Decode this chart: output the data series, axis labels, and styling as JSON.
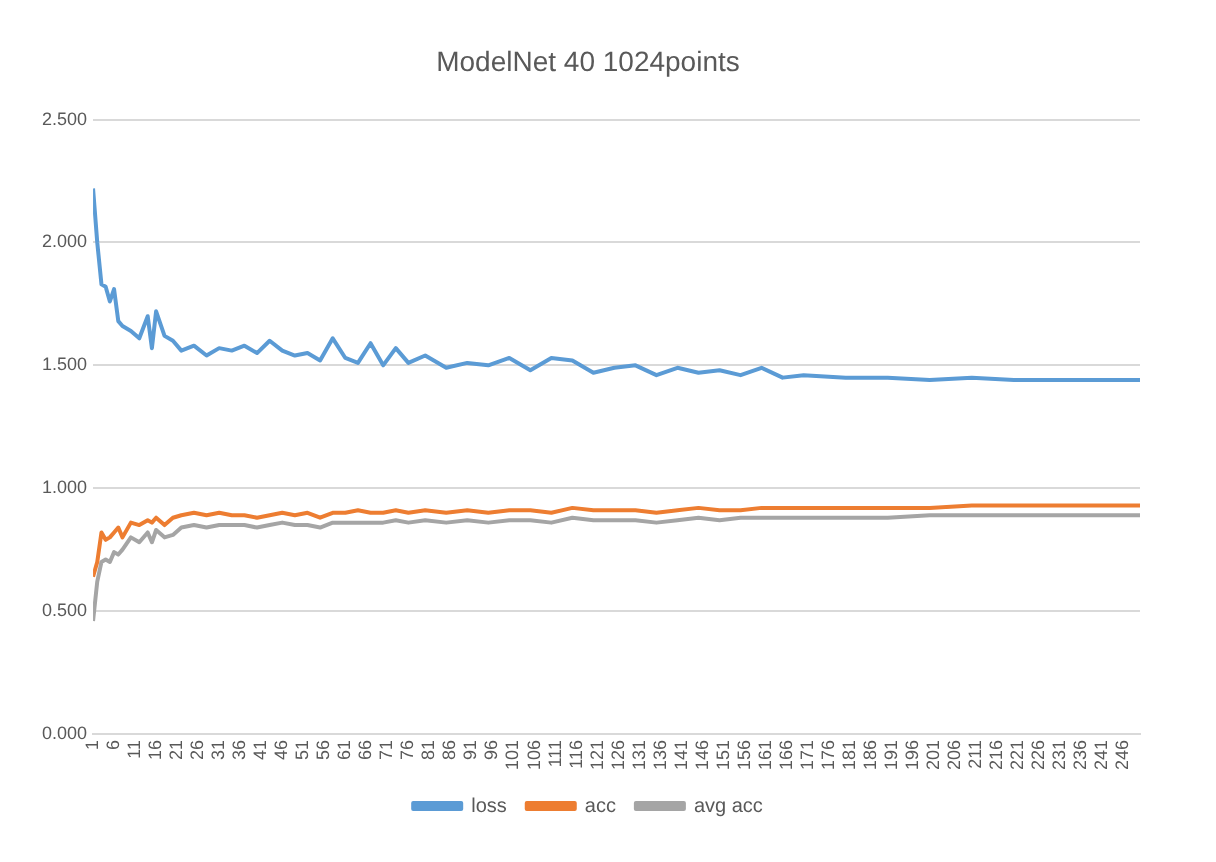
{
  "chart_data": {
    "type": "line",
    "title": "ModelNet 40 1024points",
    "x": [
      1,
      2,
      3,
      4,
      5,
      6,
      7,
      8,
      10,
      12,
      14,
      15,
      16,
      18,
      20,
      22,
      25,
      28,
      31,
      34,
      37,
      40,
      43,
      46,
      49,
      52,
      55,
      58,
      61,
      64,
      67,
      70,
      73,
      76,
      80,
      85,
      90,
      95,
      100,
      105,
      110,
      115,
      120,
      125,
      130,
      135,
      140,
      145,
      150,
      155,
      160,
      165,
      170,
      180,
      190,
      200,
      210,
      220,
      230,
      240,
      250
    ],
    "series": [
      {
        "name": "loss",
        "color": "#5b9bd5",
        "values": [
          2.22,
          2.0,
          1.83,
          1.82,
          1.76,
          1.81,
          1.68,
          1.66,
          1.64,
          1.61,
          1.7,
          1.57,
          1.72,
          1.62,
          1.6,
          1.56,
          1.58,
          1.54,
          1.57,
          1.56,
          1.58,
          1.55,
          1.6,
          1.56,
          1.54,
          1.55,
          1.52,
          1.61,
          1.53,
          1.51,
          1.59,
          1.5,
          1.57,
          1.51,
          1.54,
          1.49,
          1.51,
          1.5,
          1.53,
          1.48,
          1.53,
          1.52,
          1.47,
          1.49,
          1.5,
          1.46,
          1.49,
          1.47,
          1.48,
          1.46,
          1.49,
          1.45,
          1.46,
          1.45,
          1.45,
          1.44,
          1.45,
          1.44,
          1.44,
          1.44,
          1.44
        ]
      },
      {
        "name": "acc",
        "color": "#ed7d31",
        "values": [
          0.64,
          0.7,
          0.82,
          0.79,
          0.8,
          0.82,
          0.84,
          0.8,
          0.86,
          0.85,
          0.87,
          0.86,
          0.88,
          0.85,
          0.88,
          0.89,
          0.9,
          0.89,
          0.9,
          0.89,
          0.89,
          0.88,
          0.89,
          0.9,
          0.89,
          0.9,
          0.88,
          0.9,
          0.9,
          0.91,
          0.9,
          0.9,
          0.91,
          0.9,
          0.91,
          0.9,
          0.91,
          0.9,
          0.91,
          0.91,
          0.9,
          0.92,
          0.91,
          0.91,
          0.91,
          0.9,
          0.91,
          0.92,
          0.91,
          0.91,
          0.92,
          0.92,
          0.92,
          0.92,
          0.92,
          0.92,
          0.93,
          0.93,
          0.93,
          0.93,
          0.93
        ]
      },
      {
        "name": "avg acc",
        "color": "#a5a5a5",
        "values": [
          0.46,
          0.62,
          0.7,
          0.71,
          0.7,
          0.74,
          0.73,
          0.75,
          0.8,
          0.78,
          0.82,
          0.78,
          0.83,
          0.8,
          0.81,
          0.84,
          0.85,
          0.84,
          0.85,
          0.85,
          0.85,
          0.84,
          0.85,
          0.86,
          0.85,
          0.85,
          0.84,
          0.86,
          0.86,
          0.86,
          0.86,
          0.86,
          0.87,
          0.86,
          0.87,
          0.86,
          0.87,
          0.86,
          0.87,
          0.87,
          0.86,
          0.88,
          0.87,
          0.87,
          0.87,
          0.86,
          0.87,
          0.88,
          0.87,
          0.88,
          0.88,
          0.88,
          0.88,
          0.88,
          0.88,
          0.89,
          0.89,
          0.89,
          0.89,
          0.89,
          0.89
        ]
      }
    ],
    "xlim": [
      1,
      250
    ],
    "xticks": [
      1,
      6,
      11,
      16,
      21,
      26,
      31,
      36,
      41,
      46,
      51,
      56,
      61,
      66,
      71,
      76,
      81,
      86,
      91,
      96,
      101,
      106,
      111,
      116,
      121,
      126,
      131,
      136,
      141,
      146,
      151,
      156,
      161,
      166,
      171,
      176,
      181,
      186,
      191,
      196,
      201,
      206,
      211,
      216,
      221,
      226,
      231,
      236,
      241,
      246
    ],
    "ylim": [
      0,
      2.5
    ],
    "yticks": [
      {
        "value": 0,
        "label": "0.000"
      },
      {
        "value": 0.5,
        "label": "0.500"
      },
      {
        "value": 1,
        "label": "1.000"
      },
      {
        "value": 1.5,
        "label": "1.500"
      },
      {
        "value": 2,
        "label": "2.000"
      },
      {
        "value": 2.5,
        "label": "2.500"
      }
    ],
    "grid": "y",
    "legend": "bottom",
    "marker": "none",
    "line_style": "solid"
  }
}
